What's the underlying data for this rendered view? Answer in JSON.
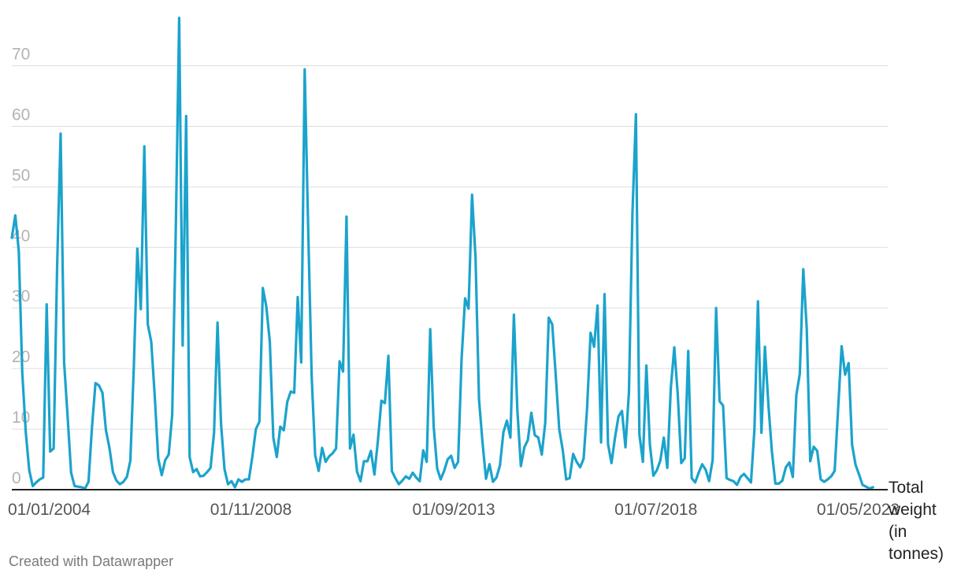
{
  "chart_data": {
    "type": "line",
    "ylabel": "Total weight (in tonnes)",
    "ylabel_lines": [
      "Total",
      "weight",
      "(in",
      "tonnes)"
    ],
    "y_ticks": [
      0,
      10,
      20,
      30,
      40,
      50,
      60,
      70
    ],
    "ylim": [
      0,
      78
    ],
    "x_ticks": [
      "2004-01-01",
      "2008-11-01",
      "2013-09-01",
      "2018-07-01",
      "2023-05-01"
    ],
    "x_tick_labels": [
      "01/01/2004",
      "01/11/2008",
      "01/09/2013",
      "01/07/2018",
      "01/05/2023"
    ],
    "xlim": [
      "2004-01-01",
      "2024-12-01"
    ],
    "grid": true,
    "line_color": "#1ba3cc",
    "series": [
      {
        "x_start": "2004-01-01",
        "x_step": "month",
        "values": [
          41.6,
          45.3,
          39.4,
          19.3,
          9.5,
          3.2,
          0.6,
          1.2,
          1.7,
          2.0,
          30.6,
          6.3,
          6.8,
          37.0,
          58.8,
          21.0,
          12.1,
          2.8,
          0.6,
          0.5,
          0.4,
          0.2,
          1.3,
          10.4,
          17.6,
          17.2,
          16.0,
          9.8,
          6.9,
          2.9,
          1.5,
          0.9,
          1.3,
          2.1,
          4.8,
          20.4,
          39.8,
          29.8,
          56.7,
          27.3,
          24.4,
          15.4,
          5.1,
          2.4,
          4.9,
          5.8,
          12.4,
          42.0,
          77.9,
          23.8,
          61.7,
          5.4,
          2.9,
          3.4,
          2.2,
          2.3,
          2.9,
          3.6,
          9.4,
          27.6,
          10.9,
          3.4,
          0.9,
          1.4,
          0.4,
          1.7,
          1.3,
          1.7,
          1.7,
          5.5,
          10.0,
          11.2,
          33.3,
          30.2,
          24.4,
          8.6,
          5.4,
          10.4,
          9.8,
          14.5,
          16.2,
          16.0,
          31.8,
          21.0,
          69.4,
          43.1,
          18.8,
          5.7,
          3.1,
          6.9,
          4.6,
          5.5,
          6.0,
          6.8,
          21.2,
          19.5,
          45.1,
          6.8,
          9.1,
          3.0,
          1.4,
          4.7,
          4.7,
          6.4,
          2.5,
          8.1,
          14.7,
          14.3,
          22.1,
          3.1,
          1.9,
          0.9,
          1.5,
          2.2,
          1.8,
          2.8,
          2.0,
          1.4,
          6.5,
          4.6,
          26.5,
          10.4,
          3.5,
          1.7,
          3.1,
          5.0,
          5.6,
          3.6,
          4.6,
          21.6,
          31.6,
          29.9,
          48.7,
          38.3,
          14.9,
          7.8,
          1.8,
          4.2,
          1.3,
          2.0,
          4.0,
          9.5,
          11.4,
          8.6,
          28.9,
          13.1,
          3.9,
          7.0,
          8.2,
          12.7,
          9.0,
          8.6,
          5.8,
          11.1,
          28.4,
          27.3,
          18.9,
          10.0,
          6.6,
          1.7,
          1.9,
          5.9,
          4.6,
          3.7,
          5.1,
          13.5,
          25.9,
          23.6,
          30.4,
          7.8,
          32.3,
          7.5,
          4.4,
          8.6,
          12.1,
          13.0,
          7.0,
          16.1,
          45.6,
          62.0,
          9.1,
          4.6,
          20.5,
          7.5,
          2.3,
          3.2,
          4.8,
          8.6,
          3.6,
          16.7,
          23.5,
          15.7,
          4.4,
          5.2,
          22.9,
          1.9,
          1.2,
          2.8,
          4.2,
          3.3,
          1.4,
          4.9,
          30.0,
          14.6,
          13.9,
          1.9,
          1.6,
          1.4,
          0.8,
          2.1,
          2.6,
          1.9,
          1.2,
          10.0,
          31.1,
          9.4,
          23.6,
          14.0,
          6.3,
          1.0,
          1.0,
          1.5,
          3.7,
          4.5,
          2.1,
          15.6,
          19.1,
          36.4,
          26.5,
          4.7,
          7.1,
          6.4,
          1.7,
          1.3,
          1.7,
          2.2,
          3.1,
          13.4,
          23.7,
          19.0,
          20.9,
          7.4,
          4.1,
          2.5,
          0.8,
          0.5,
          0.2,
          0.4
        ]
      }
    ]
  },
  "credit": "Created with Datawrapper"
}
